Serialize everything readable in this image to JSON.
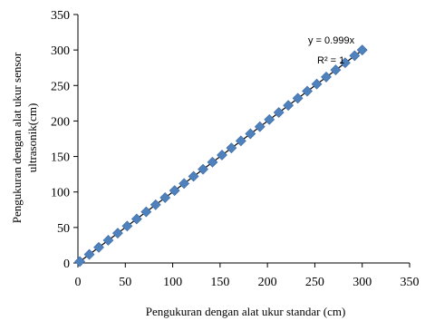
{
  "chart_data": {
    "type": "scatter",
    "xlabel": "Pengukuran dengan alat ukur standar (cm)",
    "ylabel_lines": [
      "Pengukuran dengan alat ukur sensor",
      "ultrasonik(cm)"
    ],
    "xlim": [
      0,
      350
    ],
    "ylim": [
      0,
      350
    ],
    "xticks": [
      0,
      50,
      100,
      150,
      200,
      250,
      300,
      350
    ],
    "yticks": [
      0,
      50,
      100,
      150,
      200,
      250,
      300,
      350
    ],
    "grid": false,
    "series": [
      {
        "marker": "diamond",
        "color": "#4F81BD",
        "x": [
          2,
          12,
          22,
          32,
          42,
          52,
          62,
          72,
          82,
          92,
          102,
          112,
          122,
          132,
          142,
          152,
          162,
          172,
          182,
          192,
          202,
          212,
          222,
          232,
          242,
          252,
          262,
          272,
          282,
          292,
          300
        ],
        "y": [
          2,
          12,
          22,
          32,
          42,
          52,
          62,
          72,
          82,
          92,
          102,
          112,
          122,
          132,
          142,
          152,
          162,
          172,
          182,
          192,
          202,
          212,
          222,
          232,
          242,
          252,
          262,
          272,
          282,
          292,
          300
        ]
      }
    ],
    "trendline": {
      "type": "linear",
      "slope": 0.999,
      "x_range": [
        0,
        300
      ],
      "color": "#000000"
    },
    "annotations": [
      "y = 0.999x",
      "R² = 1"
    ]
  }
}
